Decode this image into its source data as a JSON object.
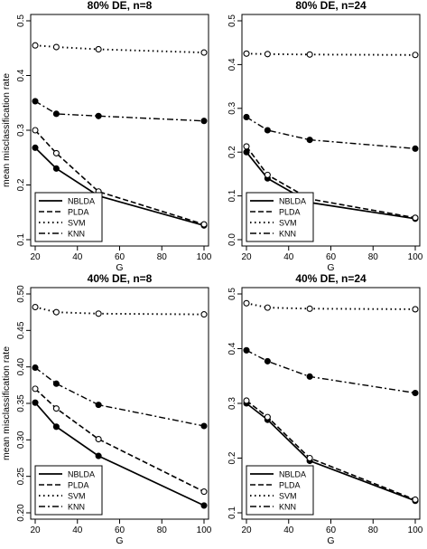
{
  "chart_data": [
    {
      "type": "line",
      "title": "80% DE, n=8",
      "xlabel": "G",
      "ylabel": "mean misclassification rate",
      "x": [
        20,
        30,
        50,
        100
      ],
      "xlim": [
        20,
        100
      ],
      "ylim": [
        0.1,
        0.5
      ],
      "xticks": [
        "20",
        "40",
        "60",
        "80",
        "100"
      ],
      "yticks": [
        "0.1",
        "0.2",
        "0.3",
        "0.4",
        "0.5"
      ],
      "legend": "bottom-left",
      "series": [
        {
          "name": "NBLDA",
          "values": [
            0.268,
            0.23,
            0.18,
            0.126
          ]
        },
        {
          "name": "PLDA",
          "values": [
            0.3,
            0.258,
            0.188,
            0.128
          ]
        },
        {
          "name": "SVM",
          "values": [
            0.455,
            0.452,
            0.448,
            0.442
          ]
        },
        {
          "name": "KNN",
          "values": [
            0.353,
            0.33,
            0.326,
            0.317
          ]
        }
      ]
    },
    {
      "type": "line",
      "title": "80% DE, n=24",
      "xlabel": "G",
      "ylabel": "",
      "x": [
        20,
        30,
        50,
        100
      ],
      "xlim": [
        20,
        100
      ],
      "ylim": [
        0.0,
        0.5
      ],
      "xticks": [
        "20",
        "40",
        "60",
        "80",
        "100"
      ],
      "yticks": [
        "0.0",
        "0.1",
        "0.2",
        "0.3",
        "0.4",
        "0.5"
      ],
      "legend": "bottom-left",
      "series": [
        {
          "name": "NBLDA",
          "values": [
            0.2,
            0.14,
            0.085,
            0.048
          ]
        },
        {
          "name": "PLDA",
          "values": [
            0.213,
            0.148,
            0.093,
            0.05
          ]
        },
        {
          "name": "SVM",
          "values": [
            0.425,
            0.424,
            0.423,
            0.422
          ]
        },
        {
          "name": "KNN",
          "values": [
            0.28,
            0.25,
            0.228,
            0.208
          ]
        }
      ]
    },
    {
      "type": "line",
      "title": "40% DE, n=8",
      "xlabel": "G",
      "ylabel": "mean misclassification rate",
      "x": [
        20,
        30,
        50,
        100
      ],
      "xlim": [
        20,
        100
      ],
      "ylim": [
        0.2,
        0.5
      ],
      "xticks": [
        "20",
        "40",
        "60",
        "80",
        "100"
      ],
      "yticks": [
        "0.20",
        "0.25",
        "0.30",
        "0.35",
        "0.40",
        "0.45",
        "0.50"
      ],
      "legend": "bottom-left",
      "series": [
        {
          "name": "NBLDA",
          "values": [
            0.351,
            0.318,
            0.278,
            0.21
          ]
        },
        {
          "name": "PLDA",
          "values": [
            0.37,
            0.343,
            0.301,
            0.229
          ]
        },
        {
          "name": "SVM",
          "values": [
            0.482,
            0.475,
            0.473,
            0.472
          ]
        },
        {
          "name": "KNN",
          "values": [
            0.399,
            0.377,
            0.348,
            0.319
          ]
        }
      ]
    },
    {
      "type": "line",
      "title": "40% DE, n=24",
      "xlabel": "G",
      "ylabel": "",
      "x": [
        20,
        30,
        50,
        100
      ],
      "xlim": [
        20,
        100
      ],
      "ylim": [
        0.1,
        0.5
      ],
      "xticks": [
        "20",
        "40",
        "60",
        "80",
        "100"
      ],
      "yticks": [
        "0.1",
        "0.2",
        "0.3",
        "0.4",
        "0.5"
      ],
      "legend": "bottom-left",
      "series": [
        {
          "name": "NBLDA",
          "values": [
            0.3,
            0.27,
            0.195,
            0.122
          ]
        },
        {
          "name": "PLDA",
          "values": [
            0.305,
            0.275,
            0.2,
            0.124
          ]
        },
        {
          "name": "SVM",
          "values": [
            0.483,
            0.475,
            0.473,
            0.472
          ]
        },
        {
          "name": "KNN",
          "values": [
            0.397,
            0.377,
            0.349,
            0.319
          ]
        }
      ]
    }
  ]
}
